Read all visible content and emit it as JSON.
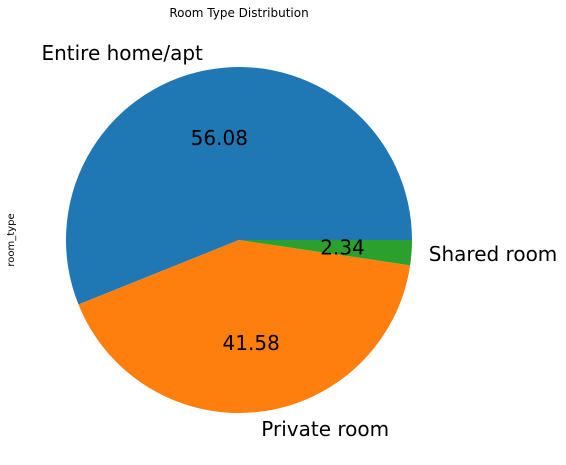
{
  "chart_data": {
    "type": "pie",
    "title": "Room Type Distribution",
    "ylabel": "room_type",
    "xlabel": "",
    "categories": [
      "Entire home/apt",
      "Private room",
      "Shared room"
    ],
    "values": [
      56.08,
      41.58,
      2.34
    ],
    "value_labels": [
      "56.08",
      "41.58",
      "2.34"
    ],
    "colors": [
      "#1f77b4",
      "#ff7f0e",
      "#2ca02c"
    ],
    "start_angle_deg": 0,
    "direction": "counterclockwise",
    "legend": "none"
  }
}
